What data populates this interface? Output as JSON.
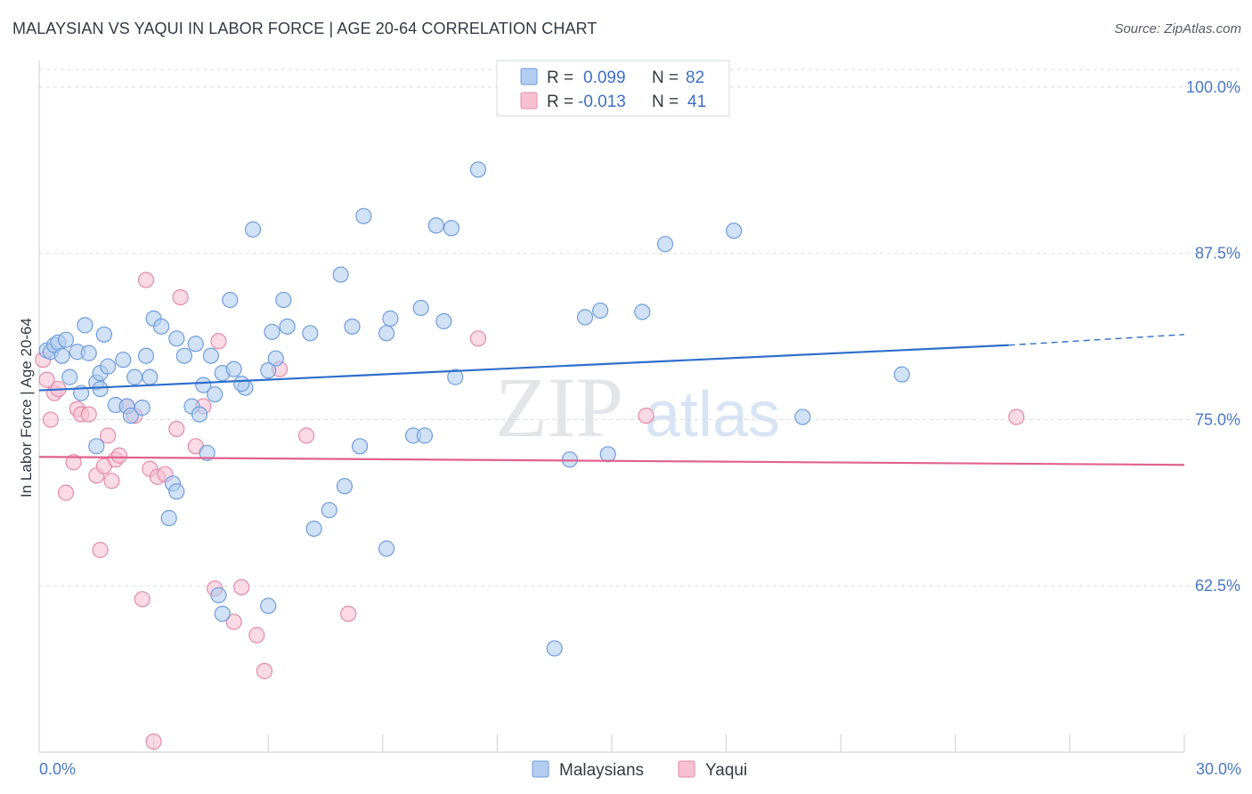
{
  "title": "MALAYSIAN VS YAQUI IN LABOR FORCE | AGE 20-64 CORRELATION CHART",
  "source": "Source: ZipAtlas.com",
  "watermark": {
    "zip": "ZIP",
    "atlas": "atlas"
  },
  "colors": {
    "malaysians_fill": "#b3cdf0",
    "malaysians_stroke": "#6f9ddd",
    "malaysians_line": "#2f6fcb",
    "yaqui_fill": "#f7c1d2",
    "yaqui_stroke": "#e58aa8",
    "yaqui_line": "#e0628d",
    "grid": "#d9dde3",
    "axis_text": "#4a78c8"
  },
  "legend": {
    "rows": [
      {
        "r_label": "R =",
        "r_value": "0.099",
        "n_label": "N =",
        "n_value": "82"
      },
      {
        "r_label": "R =",
        "r_value": "-0.013",
        "n_label": "N =",
        "n_value": "41"
      }
    ]
  },
  "chart_data": {
    "type": "scatter",
    "title": "MALAYSIAN VS YAQUI IN LABOR FORCE | AGE 20-64 CORRELATION CHART",
    "xlabel": "",
    "ylabel": "In Labor Force | Age 20-64",
    "xlim": [
      0,
      30
    ],
    "ylim": [
      50,
      102
    ],
    "x_tick_labels": [
      "0.0%",
      "30.0%"
    ],
    "y_ticks": [
      62.5,
      75.0,
      87.5,
      100.0
    ],
    "y_tick_labels": [
      "62.5%",
      "75.0%",
      "87.5%",
      "100.0%"
    ],
    "legend_position": "top-center",
    "series": [
      {
        "name": "Malaysians",
        "trend": {
          "x0": 0,
          "y0": 77.2,
          "x1": 25.4,
          "y1": 80.6,
          "dashed_to_x": 30,
          "dashed_to_y": 81.4
        },
        "points": [
          [
            0.2,
            80.2
          ],
          [
            0.3,
            80.1
          ],
          [
            0.4,
            80.6
          ],
          [
            0.5,
            80.8
          ],
          [
            0.6,
            79.8
          ],
          [
            0.7,
            81.0
          ],
          [
            0.8,
            78.2
          ],
          [
            1.0,
            80.1
          ],
          [
            1.2,
            82.1
          ],
          [
            1.3,
            80.0
          ],
          [
            1.5,
            77.8
          ],
          [
            1.6,
            78.5
          ],
          [
            1.7,
            81.4
          ],
          [
            1.8,
            79.0
          ],
          [
            1.1,
            77.0
          ],
          [
            1.6,
            77.3
          ],
          [
            2.0,
            76.1
          ],
          [
            2.2,
            79.5
          ],
          [
            2.5,
            78.2
          ],
          [
            2.8,
            79.8
          ],
          [
            2.9,
            78.2
          ],
          [
            3.0,
            82.6
          ],
          [
            3.2,
            82.0
          ],
          [
            3.6,
            81.1
          ],
          [
            3.8,
            79.8
          ],
          [
            4.1,
            80.7
          ],
          [
            4.3,
            77.6
          ],
          [
            4.5,
            79.8
          ],
          [
            4.6,
            76.9
          ],
          [
            4.8,
            78.5
          ],
          [
            5.0,
            84.0
          ],
          [
            5.1,
            78.8
          ],
          [
            5.4,
            77.4
          ],
          [
            5.3,
            77.7
          ],
          [
            5.6,
            89.3
          ],
          [
            6.0,
            78.7
          ],
          [
            6.1,
            81.6
          ],
          [
            6.2,
            79.6
          ],
          [
            6.4,
            84.0
          ],
          [
            6.5,
            82.0
          ],
          [
            7.1,
            81.5
          ],
          [
            7.9,
            85.9
          ],
          [
            8.2,
            82.0
          ],
          [
            8.4,
            73.0
          ],
          [
            8.5,
            90.3
          ],
          [
            9.1,
            81.5
          ],
          [
            9.2,
            82.6
          ],
          [
            10.0,
            83.4
          ],
          [
            10.6,
            82.4
          ],
          [
            10.4,
            89.6
          ],
          [
            10.8,
            89.4
          ],
          [
            10.9,
            78.2
          ],
          [
            11.5,
            93.8
          ],
          [
            2.3,
            76.0
          ],
          [
            2.4,
            75.3
          ],
          [
            2.7,
            75.9
          ],
          [
            3.4,
            67.6
          ],
          [
            3.5,
            70.2
          ],
          [
            3.6,
            69.6
          ],
          [
            4.0,
            76.0
          ],
          [
            4.2,
            75.4
          ],
          [
            4.4,
            72.5
          ],
          [
            4.7,
            61.8
          ],
          [
            4.8,
            60.4
          ],
          [
            6.0,
            61.0
          ],
          [
            7.2,
            66.8
          ],
          [
            7.6,
            68.2
          ],
          [
            8.0,
            70.0
          ],
          [
            9.1,
            65.3
          ],
          [
            9.8,
            73.8
          ],
          [
            10.1,
            73.8
          ],
          [
            13.9,
            72.0
          ],
          [
            14.3,
            82.7
          ],
          [
            14.7,
            83.2
          ],
          [
            14.9,
            72.4
          ],
          [
            15.8,
            83.1
          ],
          [
            16.4,
            88.2
          ],
          [
            18.2,
            89.2
          ],
          [
            20.0,
            75.2
          ],
          [
            22.6,
            78.4
          ],
          [
            13.5,
            57.8
          ],
          [
            1.5,
            73.0
          ]
        ]
      },
      {
        "name": "Yaqui",
        "trend": {
          "x0": 0,
          "y0": 72.2,
          "x1": 30,
          "y1": 71.6
        },
        "points": [
          [
            0.1,
            79.5
          ],
          [
            0.2,
            78.0
          ],
          [
            0.3,
            75.0
          ],
          [
            0.4,
            77.0
          ],
          [
            0.5,
            77.3
          ],
          [
            0.7,
            69.5
          ],
          [
            0.9,
            71.8
          ],
          [
            1.0,
            75.8
          ],
          [
            1.1,
            75.4
          ],
          [
            1.3,
            75.4
          ],
          [
            1.5,
            70.8
          ],
          [
            1.6,
            65.2
          ],
          [
            1.7,
            71.5
          ],
          [
            1.8,
            73.8
          ],
          [
            1.9,
            70.4
          ],
          [
            2.0,
            72.0
          ],
          [
            2.1,
            72.3
          ],
          [
            2.3,
            76.0
          ],
          [
            2.5,
            75.3
          ],
          [
            2.7,
            61.5
          ],
          [
            2.8,
            85.5
          ],
          [
            2.9,
            71.3
          ],
          [
            3.0,
            50.8
          ],
          [
            3.1,
            70.7
          ],
          [
            3.3,
            70.9
          ],
          [
            3.6,
            74.3
          ],
          [
            3.7,
            84.2
          ],
          [
            4.1,
            73.0
          ],
          [
            4.3,
            76.0
          ],
          [
            4.6,
            62.3
          ],
          [
            4.7,
            80.9
          ],
          [
            5.1,
            59.8
          ],
          [
            5.3,
            62.4
          ],
          [
            5.7,
            58.8
          ],
          [
            5.9,
            56.1
          ],
          [
            6.3,
            78.8
          ],
          [
            7.0,
            73.8
          ],
          [
            8.1,
            60.4
          ],
          [
            11.5,
            81.1
          ],
          [
            15.9,
            75.3
          ],
          [
            25.6,
            75.2
          ]
        ]
      }
    ]
  },
  "bottom_legend": {
    "items": [
      {
        "label": "Malaysians"
      },
      {
        "label": "Yaqui"
      }
    ]
  }
}
